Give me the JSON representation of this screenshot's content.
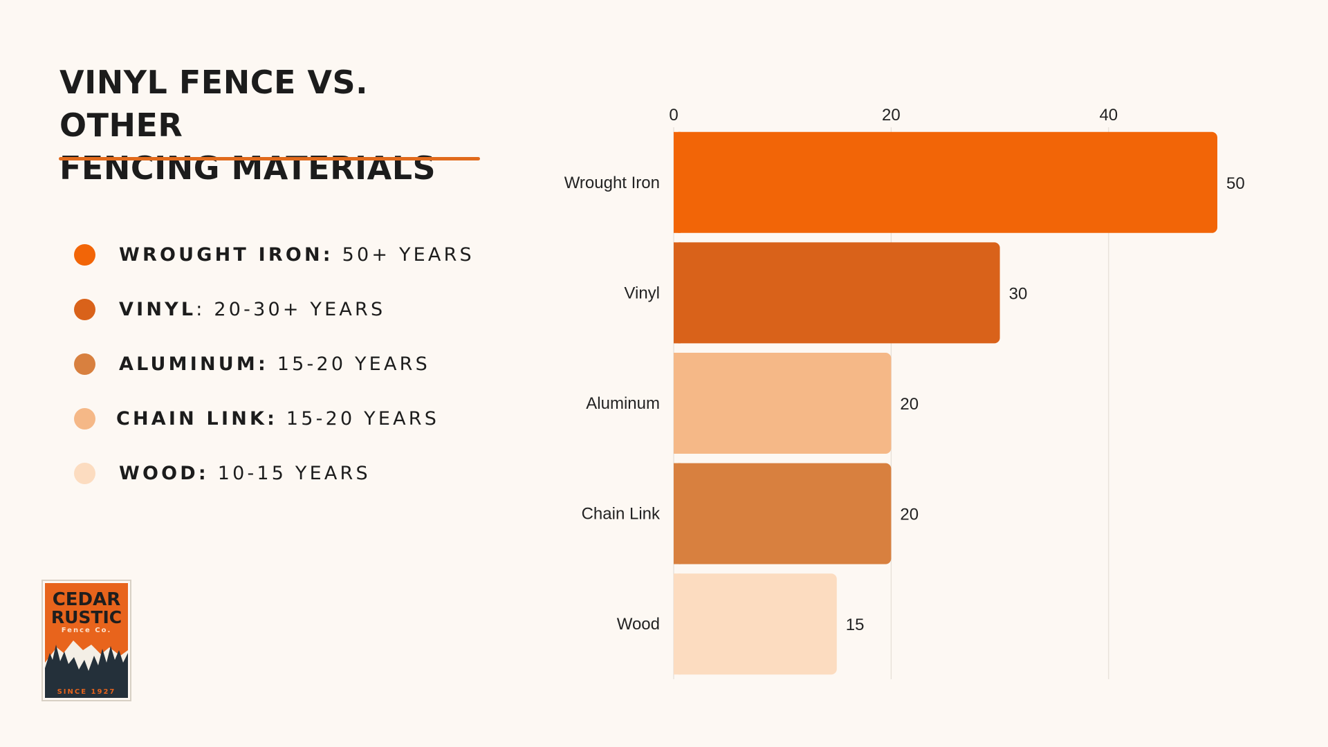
{
  "title_lines": [
    "VINYL FENCE VS. OTHER",
    "FENCING MATERIALS"
  ],
  "legend": [
    {
      "name": "WROUGHT IRON:",
      "value": " 50+ YEARS",
      "color": "#f26507"
    },
    {
      "name": "VINYL",
      "value": ": 20-30+ YEARS",
      "color": "#d9621a"
    },
    {
      "name": "ALUMINUM:",
      "value": " 15-20 YEARS",
      "color": "#d8803f"
    },
    {
      "name": "CHAIN LINK:",
      "value": " 15-20 YEARS",
      "color": "#f5b887"
    },
    {
      "name": "WOOD:",
      "value": " 10-15 YEARS",
      "color": "#fcdcc0"
    }
  ],
  "logo": {
    "line1": "CEDAR",
    "line2": "RUSTIC",
    "line3": "Fence Co.",
    "tagline": "SINCE 1927",
    "colors": {
      "background": "#e8641c",
      "dark": "#24303a",
      "text": "#1e1e1e"
    }
  },
  "chart_data": {
    "type": "bar",
    "orientation": "horizontal",
    "categories": [
      "Wrought Iron",
      "Vinyl",
      "Aluminum",
      "Chain Link",
      "Wood"
    ],
    "values": [
      50,
      30,
      20,
      20,
      15
    ],
    "value_labels": [
      "50",
      "30",
      "20",
      "20",
      "15"
    ],
    "colors": [
      "#f26507",
      "#d9621a",
      "#f5b887",
      "#d8803f",
      "#fcdcc0"
    ],
    "xlim": [
      0,
      50
    ],
    "xticks": [
      0,
      20,
      40
    ],
    "xtick_labels": [
      "0",
      "20",
      "40"
    ],
    "x_axis_position": "top",
    "grid": true,
    "legend": false
  }
}
